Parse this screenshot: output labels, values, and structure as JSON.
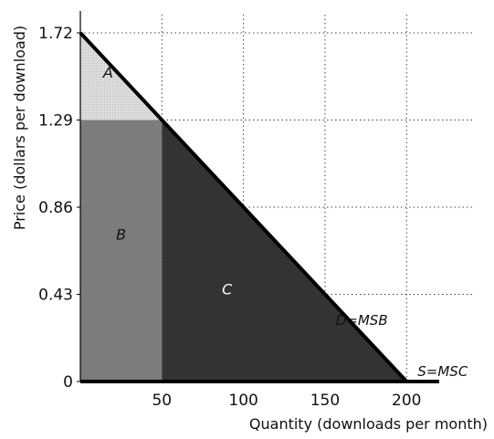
{
  "chart_data": {
    "type": "area",
    "xlabel": "Quantity (downloads per month)",
    "ylabel": "Price (dollars per download)",
    "xlim": [
      0,
      220
    ],
    "ylim": [
      0,
      1.72
    ],
    "x_ticks": [
      {
        "value": 50,
        "label": "50"
      },
      {
        "value": 100,
        "label": "100"
      },
      {
        "value": 150,
        "label": "150"
      },
      {
        "value": 200,
        "label": "200"
      }
    ],
    "y_ticks": [
      {
        "value": 0,
        "label": "0"
      },
      {
        "value": 0.43,
        "label": "0.43"
      },
      {
        "value": 0.86,
        "label": "0.86"
      },
      {
        "value": 1.29,
        "label": "1.29"
      },
      {
        "value": 1.72,
        "label": "1.72"
      }
    ],
    "grid": true,
    "lines": [
      {
        "name": "D=MSB",
        "points": [
          [
            0,
            1.72
          ],
          [
            200,
            0
          ]
        ],
        "color": "#000000"
      },
      {
        "name": "S=MSC",
        "points": [
          [
            0,
            0
          ],
          [
            220,
            0
          ]
        ],
        "color": "#000000"
      }
    ],
    "regions": [
      {
        "label": "A",
        "vertices": [
          [
            0,
            1.29
          ],
          [
            0,
            1.72
          ],
          [
            50,
            1.29
          ]
        ],
        "color": "#dcdcdc",
        "label_color": "#111111",
        "label_at": [
          17,
          1.5
        ]
      },
      {
        "label": "B",
        "vertices": [
          [
            0,
            0
          ],
          [
            0,
            1.29
          ],
          [
            50,
            1.29
          ],
          [
            50,
            0
          ]
        ],
        "color": "#7c7c7c",
        "label_color": "#111111",
        "label_at": [
          25,
          0.7
        ]
      },
      {
        "label": "C",
        "vertices": [
          [
            50,
            0
          ],
          [
            50,
            1.29
          ],
          [
            200,
            0
          ]
        ],
        "color": "#333333",
        "label_color": "#ffffff",
        "label_at": [
          90,
          0.43
        ]
      }
    ]
  }
}
